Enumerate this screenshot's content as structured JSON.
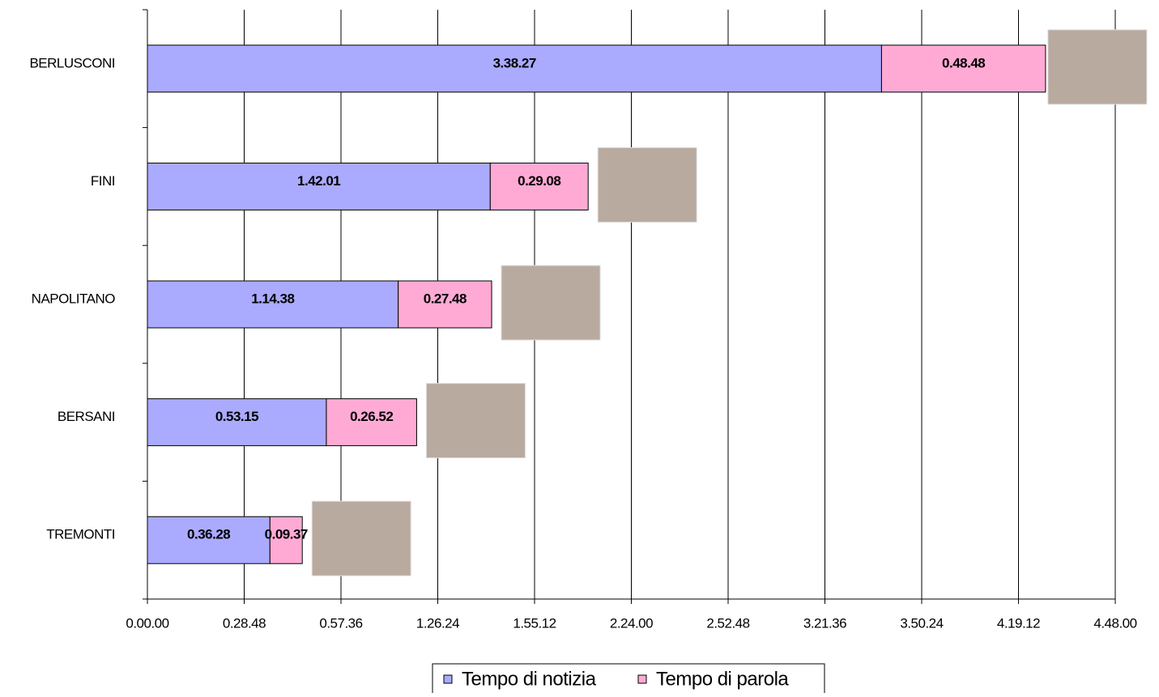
{
  "chart_data": {
    "type": "bar",
    "orientation": "horizontal",
    "stacked": true,
    "grid": true,
    "categories": [
      "BERLUSCONI",
      "FINI",
      "NAPOLITANO",
      "BERSANI",
      "TREMONTI"
    ],
    "series": [
      {
        "name": "Tempo di notizia",
        "color": "#aaaaff",
        "values": [
          13107,
          6121,
          4478,
          3195,
          2188
        ],
        "value_labels": [
          "3.38.27",
          "1.42.01",
          "1.14.38",
          "0.53.15",
          "0.36.28"
        ]
      },
      {
        "name": "Tempo di parola",
        "color": "#ffaad4",
        "values": [
          2928,
          1748,
          1668,
          1612,
          577
        ],
        "value_labels": [
          "0.48.48",
          "0.29.08",
          "0.27.48",
          "0.26.52",
          "0.09.37"
        ]
      }
    ],
    "xlim": [
      0,
      17280
    ],
    "xticks": [
      {
        "value": 0,
        "label": "0.00.00"
      },
      {
        "value": 1728,
        "label": "0.28.48"
      },
      {
        "value": 3456,
        "label": "0.57.36"
      },
      {
        "value": 5184,
        "label": "1.26.24"
      },
      {
        "value": 6912,
        "label": "1.55.12"
      },
      {
        "value": 8640,
        "label": "2.24.00"
      },
      {
        "value": 10368,
        "label": "2.52.48"
      },
      {
        "value": 12096,
        "label": "3.21.36"
      },
      {
        "value": 13824,
        "label": "3.50.24"
      },
      {
        "value": 15552,
        "label": "4.19.12"
      },
      {
        "value": 17280,
        "label": "4.48.00"
      }
    ],
    "legend": "bottom"
  }
}
